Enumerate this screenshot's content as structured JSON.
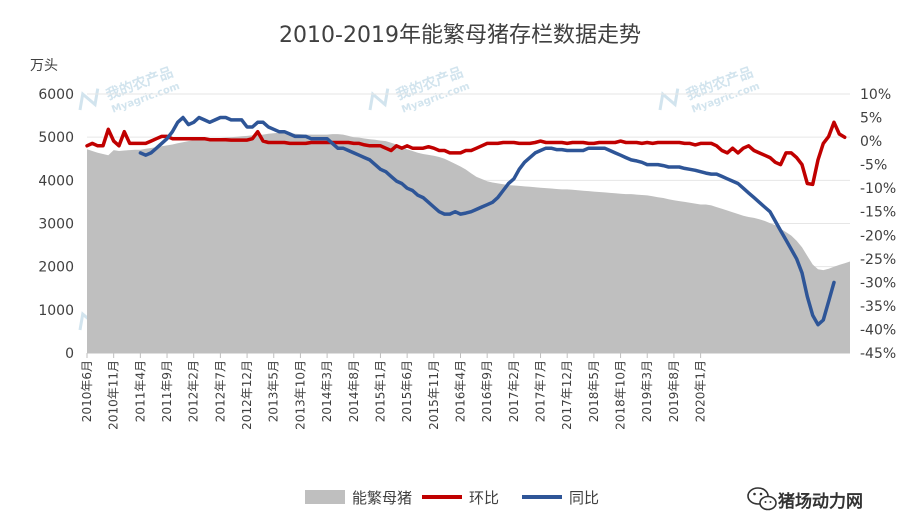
{
  "chart_data": {
    "type": "area",
    "title": "2010-2019年能繁母猪存栏数据走势",
    "ylabel_left": "万头",
    "ylim_left": [
      0,
      6000
    ],
    "yticks_left": [
      0,
      1000,
      2000,
      3000,
      4000,
      5000,
      6000
    ],
    "ylim_right": [
      -45,
      10
    ],
    "yticks_right": [
      "10%",
      "5%",
      "0%",
      "-5%",
      "-10%",
      "-15%",
      "-20%",
      "-25%",
      "-30%",
      "-35%",
      "-40%",
      "-45%"
    ],
    "x_tick_labels": [
      "2010年6月",
      "2010年11月",
      "2011年4月",
      "2011年9月",
      "2012年2月",
      "2012年7月",
      "2012年12月",
      "2013年5月",
      "2013年10月",
      "2014年3月",
      "2014年8月",
      "2015年1月",
      "2015年6月",
      "2015年11月",
      "2016年4月",
      "2016年9月",
      "2017年2月",
      "2017年7月",
      "2017年12月",
      "2018年5月",
      "2018年10月",
      "2019年3月",
      "2019年8月",
      "2020年1月"
    ],
    "x_start": "2010-06",
    "series": [
      {
        "name": "能繁母猪",
        "axis": "left",
        "kind": "area",
        "color": "#bfbfbf",
        "values": [
          4720,
          4680,
          4640,
          4610,
          4580,
          4700,
          4680,
          4690,
          4700,
          4710,
          4710,
          4730,
          4750,
          4770,
          4790,
          4810,
          4830,
          4860,
          4880,
          4910,
          4930,
          4950,
          4960,
          4970,
          4980,
          4980,
          4990,
          5000,
          5010,
          5020,
          5030,
          5040,
          5050,
          5060,
          5080,
          5090,
          5100,
          5100,
          5090,
          5080,
          5070,
          5060,
          5060,
          5060,
          5060,
          5060,
          5070,
          5070,
          5060,
          5030,
          5000,
          4990,
          4970,
          4950,
          4940,
          4920,
          4910,
          4870,
          4830,
          4780,
          4720,
          4680,
          4640,
          4610,
          4590,
          4570,
          4540,
          4500,
          4440,
          4380,
          4320,
          4250,
          4160,
          4080,
          4030,
          3980,
          3950,
          3930,
          3910,
          3890,
          3880,
          3870,
          3860,
          3850,
          3840,
          3830,
          3820,
          3810,
          3800,
          3790,
          3790,
          3780,
          3770,
          3760,
          3750,
          3740,
          3730,
          3720,
          3710,
          3700,
          3690,
          3680,
          3680,
          3670,
          3660,
          3650,
          3630,
          3610,
          3590,
          3560,
          3540,
          3520,
          3500,
          3480,
          3460,
          3440,
          3440,
          3420,
          3380,
          3340,
          3300,
          3260,
          3220,
          3180,
          3150,
          3130,
          3100,
          3060,
          3010,
          2960,
          2880,
          2800,
          2720,
          2600,
          2450,
          2250,
          2050,
          1940,
          1920,
          1950,
          2000,
          2040,
          2080,
          2120
        ]
      },
      {
        "name": "环比",
        "axis": "right",
        "kind": "line",
        "color": "#c00000",
        "values": [
          -1,
          -0.5,
          -1,
          -1,
          2.5,
          0,
          -1,
          2,
          -0.5,
          -0.5,
          -0.5,
          -0.5,
          0,
          0.5,
          1,
          1,
          0.5,
          0.5,
          0.5,
          0.5,
          0.5,
          0.5,
          0.5,
          0.3,
          0.3,
          0.3,
          0.3,
          0.2,
          0.2,
          0.2,
          0.2,
          0.5,
          2,
          0,
          -0.3,
          -0.3,
          -0.3,
          -0.3,
          -0.5,
          -0.5,
          -0.5,
          -0.5,
          -0.3,
          -0.3,
          -0.3,
          -0.3,
          -0.3,
          -0.3,
          -0.3,
          -0.3,
          -0.5,
          -0.5,
          -0.8,
          -1,
          -1,
          -1,
          -1.5,
          -2,
          -1,
          -1.5,
          -1,
          -1.5,
          -1.5,
          -1.5,
          -1.2,
          -1.5,
          -2,
          -2,
          -2.5,
          -2.5,
          -2.5,
          -2,
          -2,
          -1.5,
          -1,
          -0.5,
          -0.5,
          -0.5,
          -0.3,
          -0.3,
          -0.3,
          -0.5,
          -0.5,
          -0.5,
          -0.3,
          0,
          -0.3,
          -0.3,
          -0.3,
          -0.3,
          -0.5,
          -0.3,
          -0.3,
          -0.3,
          -0.5,
          -0.5,
          -0.3,
          -0.3,
          -0.3,
          -0.3,
          0,
          -0.3,
          -0.3,
          -0.3,
          -0.5,
          -0.3,
          -0.5,
          -0.3,
          -0.3,
          -0.3,
          -0.3,
          -0.3,
          -0.5,
          -0.5,
          -0.8,
          -0.5,
          -0.5,
          -0.5,
          -1,
          -2,
          -2.5,
          -1.5,
          -2.5,
          -1.5,
          -1,
          -2,
          -2.5,
          -3,
          -3.5,
          -4.5,
          -5,
          -2.5,
          -2.5,
          -3.5,
          -5,
          -9,
          -9.2,
          -4,
          -0.5,
          1,
          4,
          1.5,
          0.8
        ]
      },
      {
        "name": "同比",
        "axis": "right",
        "kind": "line",
        "color": "#2e5597",
        "values": [
          null,
          null,
          null,
          null,
          null,
          null,
          null,
          null,
          null,
          null,
          -2.5,
          -3,
          -2.5,
          -1.5,
          -0.5,
          0.5,
          2,
          4,
          5,
          3.5,
          4,
          5,
          4.5,
          4,
          4.5,
          5,
          5,
          4.5,
          4.5,
          4.5,
          3,
          3,
          4,
          4,
          3,
          2.5,
          2,
          2,
          1.5,
          1,
          1,
          1,
          0.5,
          0.5,
          0.5,
          0.5,
          -0.5,
          -1.5,
          -1.5,
          -2,
          -2.5,
          -3,
          -3.5,
          -4,
          -5,
          -6,
          -6.5,
          -7.5,
          -8.5,
          -9,
          -10,
          -10.5,
          -11.5,
          -12,
          -13,
          -14,
          -15,
          -15.5,
          -15.5,
          -15,
          -15.5,
          -15.3,
          -15,
          -14.5,
          -14,
          -13.5,
          -13,
          -12,
          -10.5,
          -9,
          -8,
          -6,
          -4.5,
          -3.5,
          -2.5,
          -2,
          -1.5,
          -1.5,
          -1.8,
          -1.8,
          -2,
          -2,
          -2,
          -2,
          -1.5,
          -1.5,
          -1.5,
          -1.5,
          -2,
          -2.5,
          -3,
          -3.5,
          -4,
          -4.2,
          -4.5,
          -5,
          -5,
          -5,
          -5.2,
          -5.5,
          -5.5,
          -5.5,
          -5.8,
          -6,
          -6.2,
          -6.5,
          -6.8,
          -7,
          -7,
          -7.5,
          -8,
          -8.5,
          -9,
          -10,
          -11,
          -12,
          -13,
          -14,
          -15,
          -17,
          -19,
          -21,
          -23,
          -25,
          -28,
          -33,
          -37,
          -39,
          -38,
          -34,
          -30
        ]
      }
    ],
    "legend_position": "bottom",
    "legend": [
      "能繁母猪",
      "环比",
      "同比"
    ],
    "watermark_text": "我的农产品",
    "watermark_sub": "Myagric.com",
    "source_badge": "猪场动力网"
  }
}
